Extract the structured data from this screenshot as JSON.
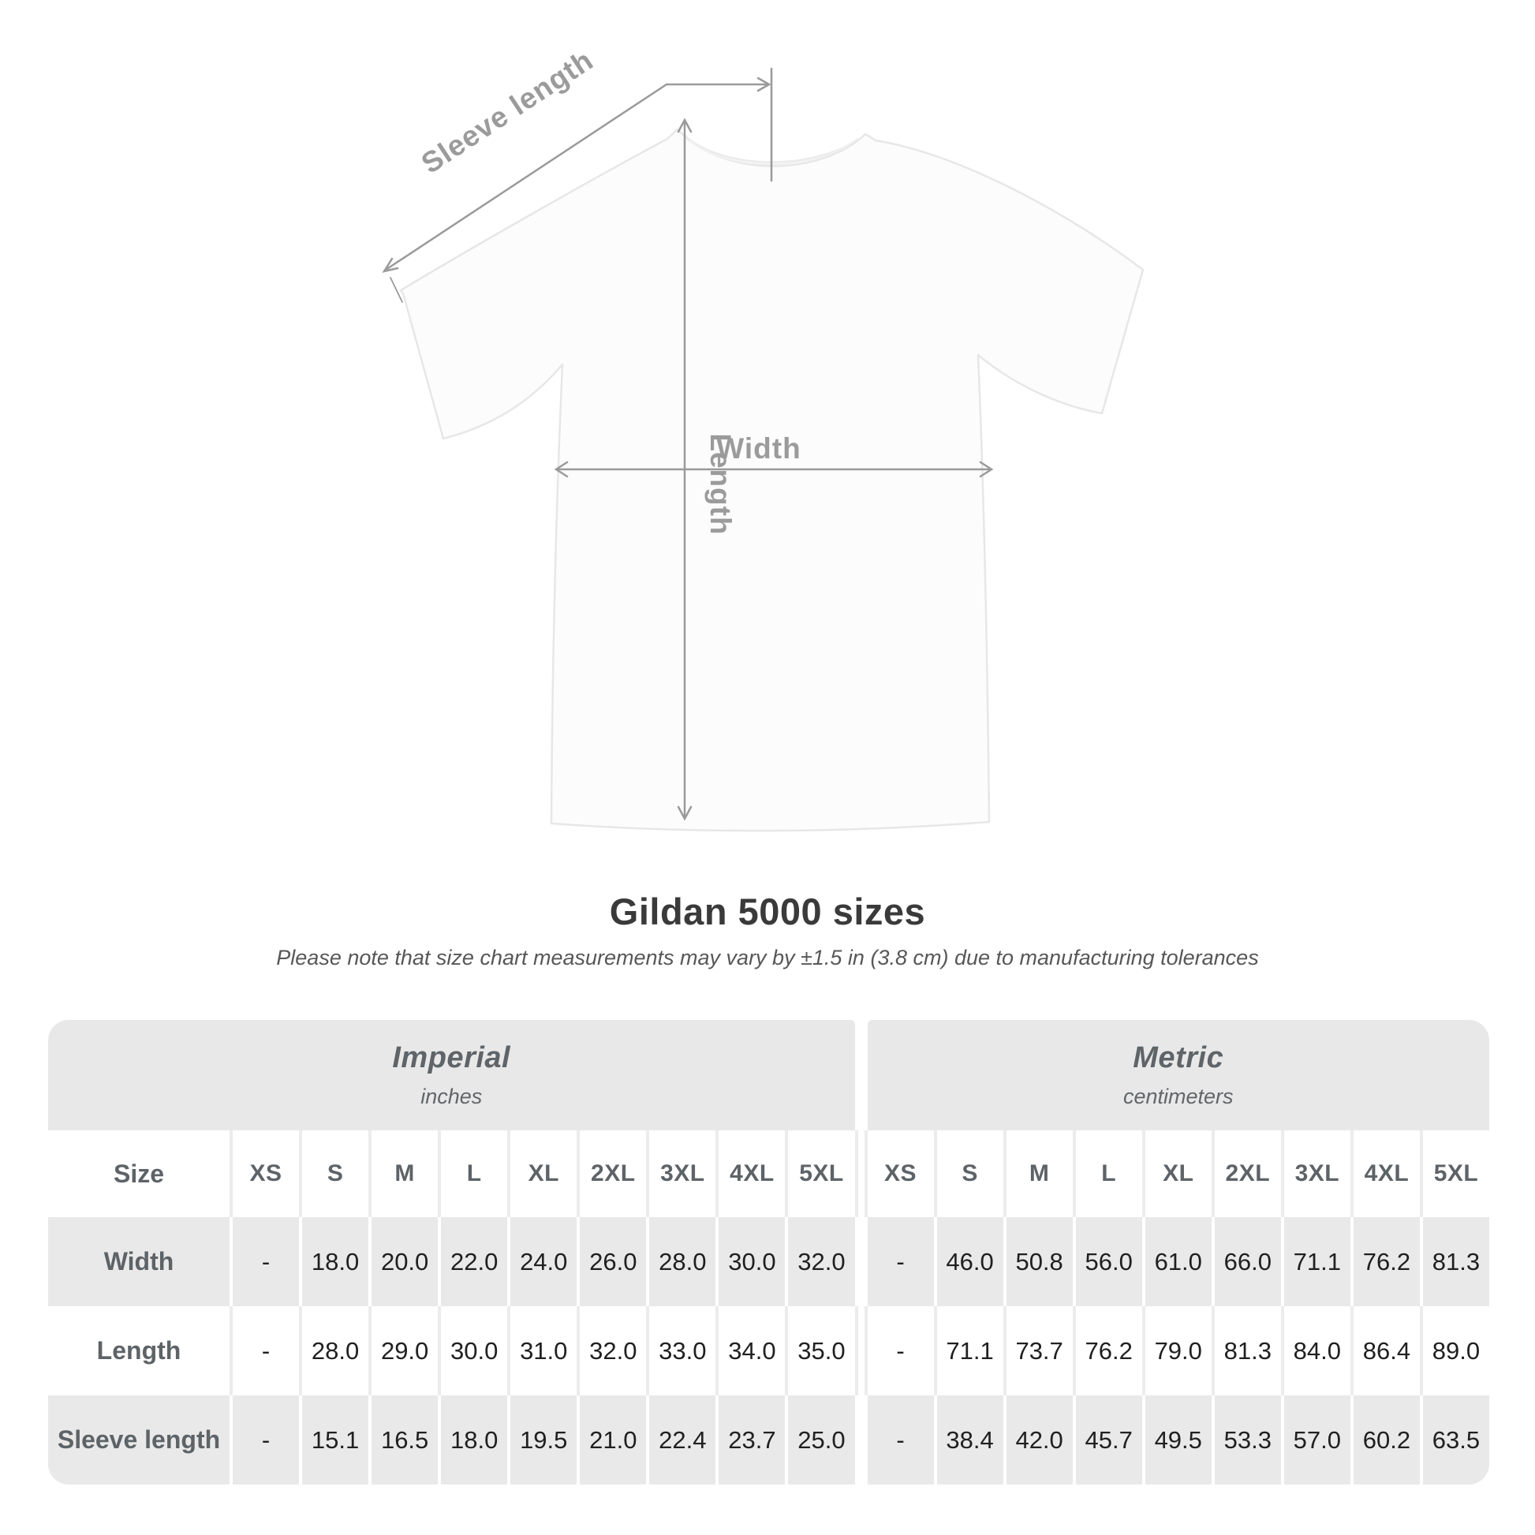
{
  "shirt_diagram": {
    "labels": {
      "sleeve_length": "Sleeve length",
      "length": "Length",
      "width": "Width"
    },
    "arrow_color": "#9a9a9a",
    "label_color": "#9b9b9b"
  },
  "heading": {
    "title": "Gildan 5000 sizes",
    "subtitle": "Please note that size chart measurements may vary by ±1.5 in (3.8 cm) due to manufacturing tolerances"
  },
  "size_table": {
    "sections": [
      {
        "title": "Imperial",
        "subtitle": "inches"
      },
      {
        "title": "Metric",
        "subtitle": "centimeters"
      }
    ],
    "size_column_label": "Size",
    "sizes": [
      "XS",
      "S",
      "M",
      "L",
      "XL",
      "2XL",
      "3XL",
      "4XL",
      "5XL"
    ],
    "rows": [
      {
        "label": "Width",
        "imperial": [
          "-",
          "18.0",
          "20.0",
          "22.0",
          "24.0",
          "26.0",
          "28.0",
          "30.0",
          "32.0"
        ],
        "metric": [
          "-",
          "46.0",
          "50.8",
          "56.0",
          "61.0",
          "66.0",
          "71.1",
          "76.2",
          "81.3"
        ]
      },
      {
        "label": "Length",
        "imperial": [
          "-",
          "28.0",
          "29.0",
          "30.0",
          "31.0",
          "32.0",
          "33.0",
          "34.0",
          "35.0"
        ],
        "metric": [
          "-",
          "71.1",
          "73.7",
          "76.2",
          "79.0",
          "81.3",
          "84.0",
          "86.4",
          "89.0"
        ]
      },
      {
        "label": "Sleeve length",
        "imperial": [
          "-",
          "15.1",
          "16.5",
          "18.0",
          "19.5",
          "21.0",
          "22.4",
          "23.7",
          "25.0"
        ],
        "metric": [
          "-",
          "38.4",
          "42.0",
          "45.7",
          "49.5",
          "53.3",
          "57.0",
          "60.2",
          "63.5"
        ]
      }
    ],
    "colors": {
      "band_background": "#e8e8e8",
      "row_alt_background": "#e9e9e9",
      "header_text": "#5d6367",
      "value_text": "#202020"
    }
  },
  "chart_data": {
    "type": "table",
    "title": "Gildan 5000 sizes",
    "note": "Please note that size chart measurements may vary by ±1.5 in (3.8 cm) due to manufacturing tolerances",
    "column_groups": [
      "Imperial (inches)",
      "Metric (centimeters)"
    ],
    "columns": [
      "Size",
      "XS",
      "S",
      "M",
      "L",
      "XL",
      "2XL",
      "3XL",
      "4XL",
      "5XL"
    ],
    "rows_imperial": [
      [
        "Width",
        null,
        18.0,
        20.0,
        22.0,
        24.0,
        26.0,
        28.0,
        30.0,
        32.0
      ],
      [
        "Length",
        null,
        28.0,
        29.0,
        30.0,
        31.0,
        32.0,
        33.0,
        34.0,
        35.0
      ],
      [
        "Sleeve length",
        null,
        15.1,
        16.5,
        18.0,
        19.5,
        21.0,
        22.4,
        23.7,
        25.0
      ]
    ],
    "rows_metric": [
      [
        "Width",
        null,
        46.0,
        50.8,
        56.0,
        61.0,
        66.0,
        71.1,
        76.2,
        81.3
      ],
      [
        "Length",
        null,
        71.1,
        73.7,
        76.2,
        79.0,
        81.3,
        84.0,
        86.4,
        89.0
      ],
      [
        "Sleeve length",
        null,
        38.4,
        42.0,
        45.7,
        49.5,
        53.3,
        57.0,
        60.2,
        63.5
      ]
    ]
  }
}
